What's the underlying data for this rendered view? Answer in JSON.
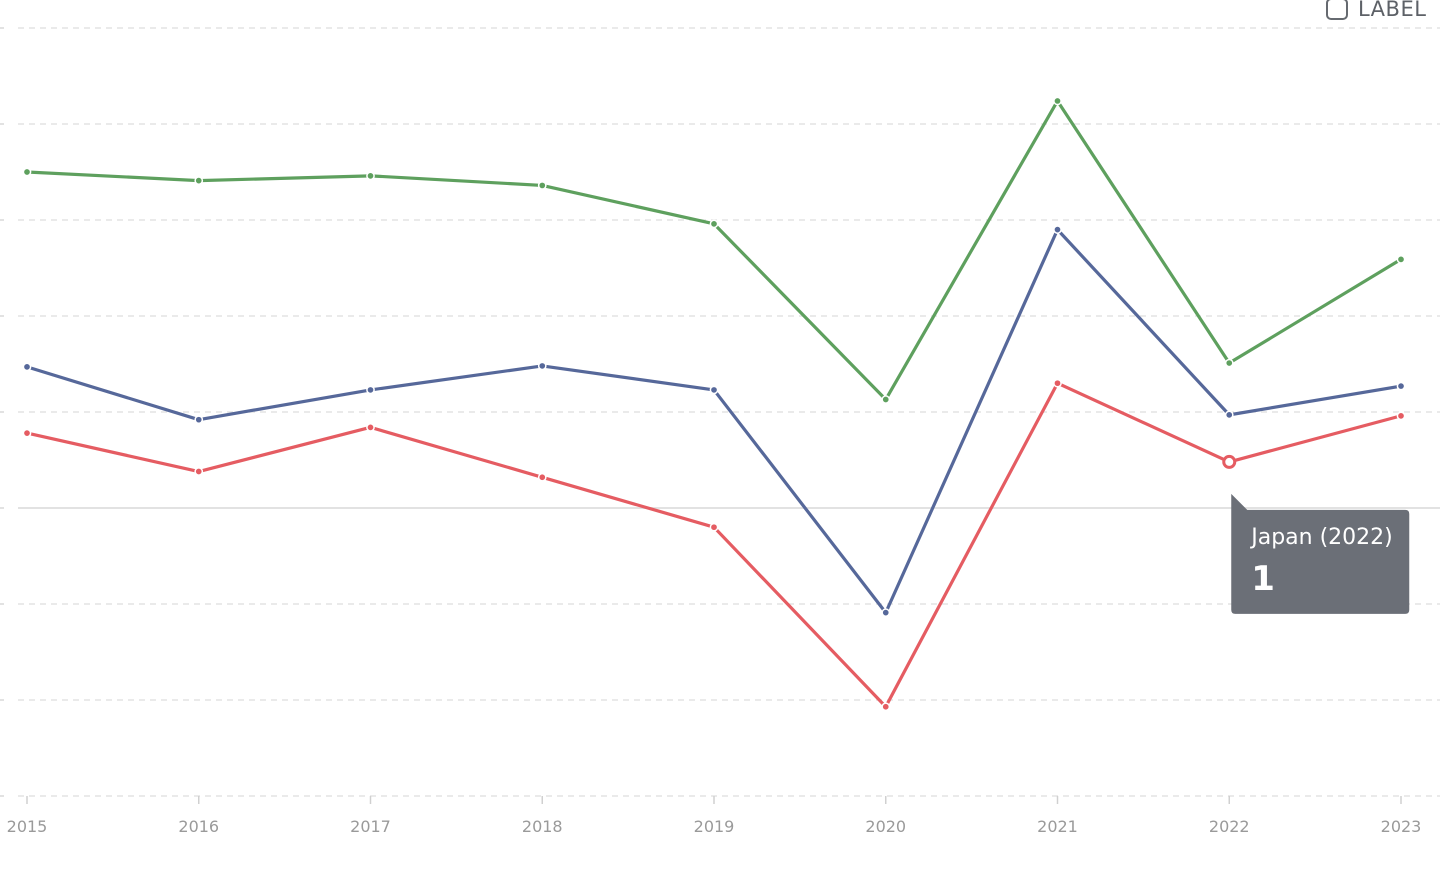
{
  "legend_toggle": {
    "label": "LABEL"
  },
  "tooltip": {
    "title": "Japan (2022)",
    "value": "1",
    "background": "#6b6f77",
    "series_index": 2,
    "x_index": 7
  },
  "chart_data": {
    "type": "line",
    "x": [
      "2015",
      "2016",
      "2017",
      "2018",
      "2019",
      "2020",
      "2021",
      "2022",
      "2023"
    ],
    "ylim": [
      -3,
      5
    ],
    "y_tick_step": 1,
    "zero_line": 0,
    "grid": true,
    "series": [
      {
        "color": "#5ea05e",
        "values": [
          3.5,
          3.41,
          3.46,
          3.36,
          2.96,
          1.13,
          4.24,
          1.51,
          2.59
        ]
      },
      {
        "color": "#56689a",
        "values": [
          1.47,
          0.92,
          1.23,
          1.48,
          1.23,
          -1.09,
          2.9,
          0.97,
          1.27
        ]
      },
      {
        "color": "#e55c62",
        "values": [
          0.78,
          0.38,
          0.84,
          0.32,
          -0.2,
          -2.07,
          1.3,
          0.48,
          0.96
        ]
      }
    ]
  }
}
